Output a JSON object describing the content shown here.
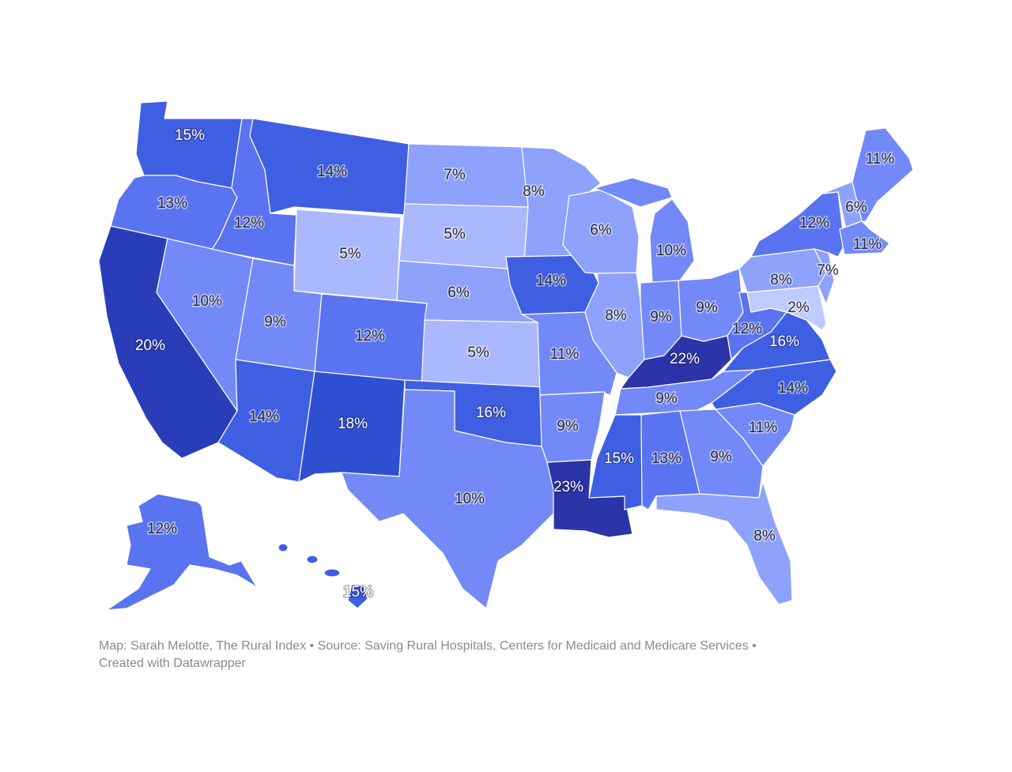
{
  "footer": {
    "line1": "Map: Sarah Melotte, The Rural Index • Source: Saving Rural Hospitals, Centers for Medicaid and Medicare Services •",
    "line2": "Created with Datawrapper"
  },
  "colors": {
    "scale": [
      "#bfcaff",
      "#a9b8ff",
      "#8ea2fb",
      "#7389f7",
      "#5a73f0",
      "#3f5fe3",
      "#2f4fd3",
      "#2a3db8",
      "#2b34a8"
    ],
    "label_dark": "#2b2b33",
    "label_light": "#ffffff",
    "border": "#ffffff",
    "footer_text": "#8a8a8a"
  },
  "chart_data": {
    "type": "choropleth",
    "title": "",
    "region": "United States",
    "value_unit": "%",
    "legend": "none visible",
    "states": [
      {
        "state": "Washington",
        "abbr": "WA",
        "value": 15,
        "label": "15%"
      },
      {
        "state": "Oregon",
        "abbr": "OR",
        "value": 13,
        "label": "13%"
      },
      {
        "state": "California",
        "abbr": "CA",
        "value": 20,
        "label": "20%"
      },
      {
        "state": "Idaho",
        "abbr": "ID",
        "value": 12,
        "label": "12%"
      },
      {
        "state": "Nevada",
        "abbr": "NV",
        "value": 10,
        "label": "10%"
      },
      {
        "state": "Montana",
        "abbr": "MT",
        "value": 14,
        "label": "14%"
      },
      {
        "state": "Wyoming",
        "abbr": "WY",
        "value": 5,
        "label": "5%"
      },
      {
        "state": "Utah",
        "abbr": "UT",
        "value": 9,
        "label": "9%"
      },
      {
        "state": "Arizona",
        "abbr": "AZ",
        "value": 14,
        "label": "14%"
      },
      {
        "state": "Colorado",
        "abbr": "CO",
        "value": 12,
        "label": "12%"
      },
      {
        "state": "New Mexico",
        "abbr": "NM",
        "value": 18,
        "label": "18%"
      },
      {
        "state": "North Dakota",
        "abbr": "ND",
        "value": 7,
        "label": "7%"
      },
      {
        "state": "South Dakota",
        "abbr": "SD",
        "value": 5,
        "label": "5%"
      },
      {
        "state": "Nebraska",
        "abbr": "NE",
        "value": 6,
        "label": "6%"
      },
      {
        "state": "Kansas",
        "abbr": "KS",
        "value": 5,
        "label": "5%"
      },
      {
        "state": "Oklahoma",
        "abbr": "OK",
        "value": 16,
        "label": "16%"
      },
      {
        "state": "Texas",
        "abbr": "TX",
        "value": 10,
        "label": "10%"
      },
      {
        "state": "Minnesota",
        "abbr": "MN",
        "value": 8,
        "label": "8%"
      },
      {
        "state": "Iowa",
        "abbr": "IA",
        "value": 14,
        "label": "14%"
      },
      {
        "state": "Missouri",
        "abbr": "MO",
        "value": 11,
        "label": "11%"
      },
      {
        "state": "Arkansas",
        "abbr": "AR",
        "value": 9,
        "label": "9%"
      },
      {
        "state": "Louisiana",
        "abbr": "LA",
        "value": 23,
        "label": "23%"
      },
      {
        "state": "Wisconsin",
        "abbr": "WI",
        "value": 6,
        "label": "6%"
      },
      {
        "state": "Illinois",
        "abbr": "IL",
        "value": 8,
        "label": "8%"
      },
      {
        "state": "Michigan",
        "abbr": "MI",
        "value": 10,
        "label": "10%"
      },
      {
        "state": "Indiana",
        "abbr": "IN",
        "value": 9,
        "label": "9%"
      },
      {
        "state": "Ohio",
        "abbr": "OH",
        "value": 9,
        "label": "9%"
      },
      {
        "state": "Kentucky",
        "abbr": "KY",
        "value": 22,
        "label": "22%"
      },
      {
        "state": "Tennessee",
        "abbr": "TN",
        "value": 9,
        "label": "9%"
      },
      {
        "state": "Mississippi",
        "abbr": "MS",
        "value": 15,
        "label": "15%"
      },
      {
        "state": "Alabama",
        "abbr": "AL",
        "value": 13,
        "label": "13%"
      },
      {
        "state": "Georgia",
        "abbr": "GA",
        "value": 9,
        "label": "9%"
      },
      {
        "state": "Florida",
        "abbr": "FL",
        "value": 8,
        "label": "8%"
      },
      {
        "state": "South Carolina",
        "abbr": "SC",
        "value": 11,
        "label": "11%"
      },
      {
        "state": "North Carolina",
        "abbr": "NC",
        "value": 14,
        "label": "14%"
      },
      {
        "state": "Virginia",
        "abbr": "VA",
        "value": 16,
        "label": "16%"
      },
      {
        "state": "West Virginia",
        "abbr": "WV",
        "value": 12,
        "label": "12%"
      },
      {
        "state": "Maryland",
        "abbr": "MD",
        "value": 2,
        "label": "2%"
      },
      {
        "state": "Pennsylvania",
        "abbr": "PA",
        "value": 8,
        "label": "8%"
      },
      {
        "state": "New Jersey",
        "abbr": "NJ",
        "value": 7,
        "label": "7%"
      },
      {
        "state": "New York",
        "abbr": "NY",
        "value": 12,
        "label": "12%"
      },
      {
        "state": "New Hampshire",
        "abbr": "NH",
        "value": 6,
        "label": "6%"
      },
      {
        "state": "Massachusetts",
        "abbr": "MA",
        "value": 11,
        "label": "11%"
      },
      {
        "state": "Maine",
        "abbr": "ME",
        "value": 11,
        "label": "11%"
      },
      {
        "state": "Alaska",
        "abbr": "AK",
        "value": 12,
        "label": "12%"
      },
      {
        "state": "Hawaii",
        "abbr": "HI",
        "value": 15,
        "label": "15%"
      }
    ]
  }
}
